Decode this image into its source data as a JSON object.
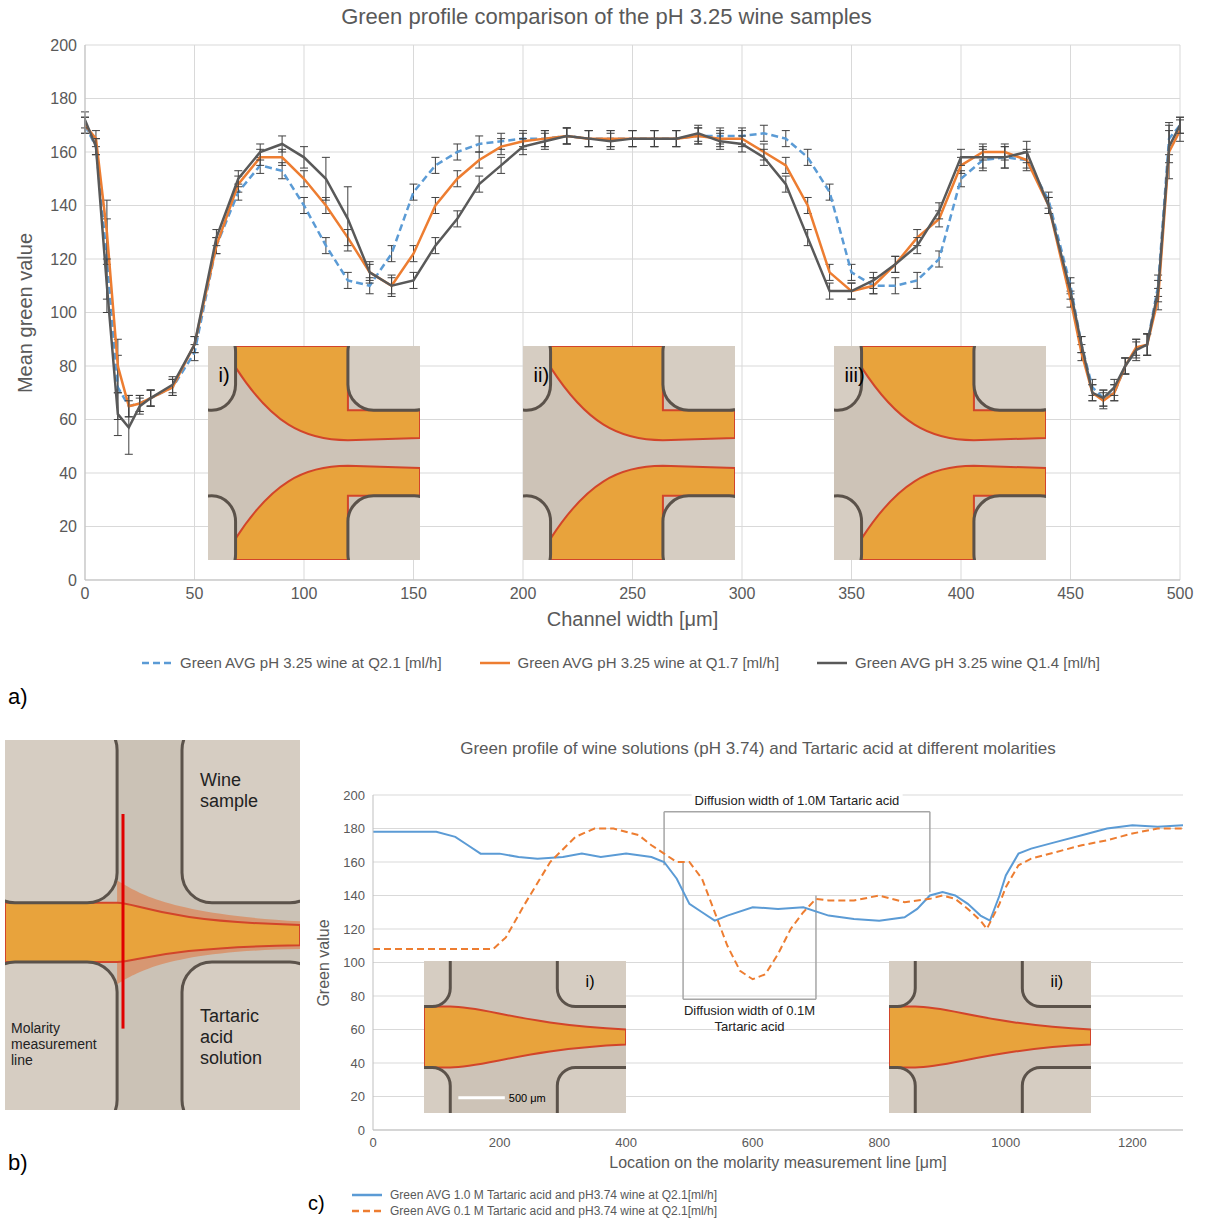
{
  "chart_data": [
    {
      "panel_label": "a)",
      "type": "line",
      "title": "Green profile comparison of the pH 3.25 wine samples",
      "x_label": "Channel width [μm]",
      "y_label": "Mean green value",
      "xlim": [
        0,
        500
      ],
      "xticks": [
        0,
        50,
        100,
        150,
        200,
        250,
        300,
        350,
        400,
        450,
        500
      ],
      "ylim": [
        0,
        200
      ],
      "yticks": [
        0,
        20,
        40,
        60,
        80,
        100,
        120,
        140,
        160,
        180,
        200
      ],
      "grid": true,
      "legend": "bottom",
      "x": [
        0,
        5,
        10,
        15,
        20,
        25,
        30,
        40,
        50,
        60,
        70,
        80,
        90,
        100,
        110,
        120,
        130,
        140,
        150,
        160,
        170,
        180,
        190,
        200,
        210,
        220,
        230,
        240,
        250,
        260,
        270,
        280,
        290,
        300,
        310,
        320,
        330,
        340,
        350,
        360,
        370,
        380,
        390,
        400,
        410,
        420,
        430,
        440,
        450,
        455,
        460,
        465,
        470,
        475,
        480,
        485,
        490,
        495,
        500
      ],
      "series": [
        {
          "name": "Green AVG pH 3.25 wine at Q2.1 [ml/h]",
          "color": "#5b9bd5",
          "line_style": "dashed",
          "values": [
            170,
            162,
            120,
            72,
            65,
            66,
            68,
            72,
            85,
            125,
            145,
            155,
            153,
            140,
            125,
            112,
            110,
            122,
            145,
            155,
            160,
            163,
            164,
            165,
            165,
            166,
            165,
            165,
            165,
            165,
            165,
            166,
            166,
            166,
            167,
            165,
            158,
            145,
            115,
            110,
            110,
            112,
            120,
            150,
            157,
            158,
            157,
            142,
            110,
            88,
            72,
            68,
            70,
            80,
            86,
            88,
            110,
            165,
            170
          ],
          "errors": [
            3,
            3,
            15,
            12,
            4,
            3,
            3,
            3,
            3,
            3,
            3,
            3,
            3,
            3,
            3,
            3,
            3,
            3,
            3,
            3,
            3,
            3,
            3,
            3,
            3,
            3,
            3,
            3,
            3,
            3,
            3,
            3,
            3,
            3,
            3,
            3,
            3,
            3,
            3,
            3,
            3,
            3,
            3,
            3,
            4,
            4,
            4,
            3,
            3,
            3,
            3,
            3,
            3,
            3,
            4,
            4,
            4,
            6,
            3
          ]
        },
        {
          "name": "Green AVG pH 3.25 wine at Q1.7 [ml/h]",
          "color": "#ed7d31",
          "line_style": "solid",
          "values": [
            170,
            165,
            130,
            80,
            65,
            66,
            68,
            72,
            88,
            125,
            148,
            158,
            158,
            150,
            140,
            128,
            115,
            110,
            122,
            140,
            150,
            157,
            162,
            164,
            165,
            166,
            165,
            165,
            165,
            165,
            165,
            166,
            165,
            165,
            160,
            155,
            140,
            115,
            108,
            110,
            118,
            128,
            135,
            155,
            160,
            160,
            157,
            140,
            105,
            85,
            70,
            67,
            70,
            80,
            87,
            88,
            105,
            160,
            168
          ],
          "errors": [
            3,
            3,
            12,
            10,
            4,
            3,
            3,
            3,
            3,
            3,
            3,
            3,
            3,
            3,
            3,
            3,
            3,
            3,
            3,
            3,
            3,
            3,
            3,
            3,
            3,
            3,
            3,
            3,
            3,
            3,
            3,
            3,
            3,
            3,
            3,
            3,
            3,
            3,
            3,
            3,
            3,
            3,
            3,
            3,
            3,
            3,
            3,
            3,
            3,
            3,
            3,
            3,
            3,
            3,
            3,
            4,
            4,
            10,
            4
          ]
        },
        {
          "name": "Green AVG pH 3.25 wine Q1.4 [ml/h]",
          "color": "#595959",
          "line_style": "solid",
          "values": [
            172,
            162,
            110,
            62,
            57,
            65,
            68,
            73,
            88,
            128,
            150,
            160,
            163,
            158,
            150,
            135,
            115,
            110,
            112,
            125,
            135,
            148,
            155,
            162,
            164,
            166,
            165,
            164,
            165,
            165,
            165,
            167,
            164,
            163,
            158,
            148,
            128,
            108,
            108,
            112,
            118,
            125,
            138,
            158,
            158,
            158,
            160,
            140,
            108,
            88,
            70,
            68,
            72,
            80,
            86,
            88,
            108,
            162,
            170
          ],
          "errors": [
            3,
            3,
            10,
            8,
            10,
            3,
            3,
            3,
            3,
            3,
            3,
            3,
            3,
            4,
            8,
            12,
            4,
            4,
            3,
            3,
            3,
            3,
            3,
            3,
            3,
            3,
            3,
            3,
            3,
            3,
            3,
            3,
            3,
            3,
            3,
            3,
            3,
            3,
            3,
            3,
            3,
            3,
            3,
            3,
            4,
            4,
            4,
            3,
            3,
            3,
            3,
            3,
            3,
            3,
            3,
            4,
            4,
            6,
            3
          ]
        }
      ],
      "insets": [
        "i)",
        "ii)",
        "iii)"
      ]
    },
    {
      "panel_label": "c)",
      "type": "line",
      "title": "Green profile of wine solutions (pH 3.74) and Tartaric acid at different molarities",
      "x_label": "Location on the molarity measurement line [μm]",
      "y_label": "Green value",
      "xlim": [
        0,
        1280
      ],
      "xticks": [
        0,
        200,
        400,
        600,
        800,
        1000,
        1200
      ],
      "ylim": [
        0,
        200
      ],
      "yticks": [
        0,
        20,
        40,
        60,
        80,
        100,
        120,
        140,
        160,
        180,
        200
      ],
      "grid": "y",
      "legend": "bottom",
      "series": [
        {
          "name": "Green AVG 1.0 M Tartaric acid and pH3.74 wine at Q2.1[ml/h]",
          "color": "#5b9bd5",
          "line_style": "solid",
          "x": [
            0,
            100,
            130,
            150,
            170,
            200,
            230,
            260,
            300,
            330,
            360,
            400,
            440,
            460,
            480,
            500,
            520,
            540,
            560,
            600,
            640,
            680,
            720,
            760,
            800,
            840,
            860,
            880,
            900,
            920,
            940,
            960,
            975,
            990,
            1000,
            1020,
            1040,
            1080,
            1120,
            1160,
            1200,
            1240,
            1280
          ],
          "values": [
            178,
            178,
            175,
            170,
            165,
            165,
            163,
            162,
            163,
            165,
            163,
            165,
            163,
            160,
            150,
            135,
            130,
            125,
            128,
            133,
            132,
            133,
            128,
            126,
            125,
            127,
            132,
            140,
            142,
            140,
            135,
            128,
            125,
            140,
            152,
            165,
            168,
            172,
            176,
            180,
            182,
            181,
            182
          ]
        },
        {
          "name": "Green AVG 0.1 M Tartaric acid and pH3.74 wine at Q2.1[ml/h]",
          "color": "#ed7d31",
          "line_style": "dashed",
          "x": [
            0,
            100,
            190,
            210,
            240,
            280,
            320,
            350,
            380,
            420,
            440,
            460,
            480,
            500,
            520,
            540,
            560,
            580,
            600,
            620,
            640,
            660,
            680,
            700,
            720,
            760,
            800,
            840,
            880,
            900,
            920,
            940,
            960,
            970,
            990,
            1000,
            1020,
            1040,
            1080,
            1120,
            1160,
            1200,
            1240,
            1280
          ],
          "values": [
            108,
            108,
            108,
            115,
            135,
            160,
            175,
            180,
            180,
            176,
            170,
            165,
            160,
            160,
            150,
            130,
            110,
            95,
            90,
            93,
            105,
            120,
            130,
            138,
            137,
            137,
            140,
            136,
            138,
            140,
            138,
            132,
            125,
            120,
            135,
            145,
            158,
            162,
            166,
            170,
            173,
            177,
            180,
            180
          ]
        }
      ],
      "annotations": [
        {
          "text": "Diffusion width of 1.0M Tartaric acid",
          "x_range": [
            460,
            880
          ]
        },
        {
          "text": "Diffusion width of 0.1M Tartaric acid",
          "x_range": [
            490,
            700
          ]
        }
      ],
      "insets": [
        {
          "label": "i)",
          "scale_bar": "500 μm"
        },
        {
          "label": "ii)"
        }
      ]
    }
  ],
  "diagram": {
    "panel_label": "b)",
    "labels": {
      "top_right": "Wine sample",
      "bottom_right": "Tartaric acid solution",
      "bottom_left": "Molarity measurement line"
    }
  }
}
